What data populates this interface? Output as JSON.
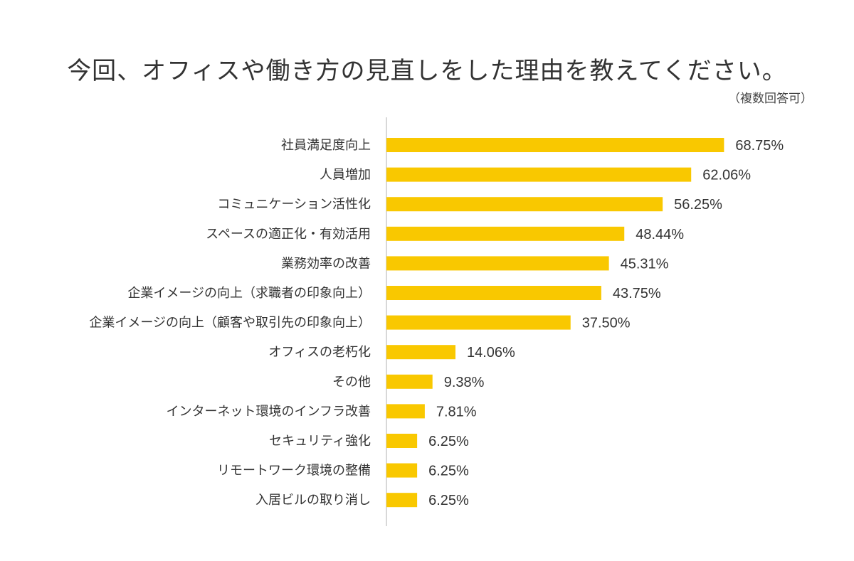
{
  "title": "今回、オフィスや働き方の見直しをした理由を教えてください。",
  "subtitle": "（複数回答可）",
  "colors": {
    "bar": "#F9C800",
    "axis": "#cccccc",
    "text": "#333333"
  },
  "chart_data": {
    "type": "bar",
    "orientation": "horizontal",
    "title": "今回、オフィスや働き方の見直しをした理由を教えてください。",
    "subtitle": "（複数回答可）",
    "xlabel": "",
    "ylabel": "",
    "xlim": [
      0,
      100
    ],
    "grid": false,
    "legend": "none",
    "categories": [
      "社員満足度向上",
      "人員増加",
      "コミュニケーション活性化",
      "スペースの適正化・有効活用",
      "業務効率の改善",
      "企業イメージの向上（求職者の印象向上）",
      "企業イメージの向上（顧客や取引先の印象向上）",
      "オフィスの老朽化",
      "その他",
      "インターネット環境のインフラ改善",
      "セキュリティ強化",
      "リモートワーク環境の整備",
      "入居ビルの取り消し"
    ],
    "values": [
      68.75,
      62.06,
      56.25,
      48.44,
      45.31,
      43.75,
      37.5,
      14.06,
      9.38,
      7.81,
      6.25,
      6.25,
      6.25
    ],
    "value_labels": [
      "68.75%",
      "62.06%",
      "56.25%",
      "48.44%",
      "45.31%",
      "43.75%",
      "37.50%",
      "14.06%",
      "9.38%",
      "7.81%",
      "6.25%",
      "6.25%",
      "6.25%"
    ]
  }
}
